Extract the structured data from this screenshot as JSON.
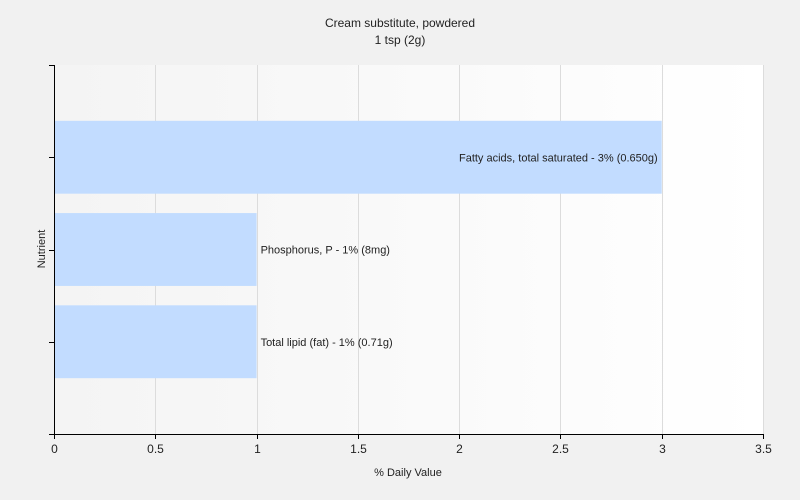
{
  "chart_data": {
    "type": "bar",
    "orientation": "horizontal",
    "title": "Cream substitute, powdered",
    "subtitle": "1 tsp (2g)",
    "xlabel": "% Daily Value",
    "ylabel": "Nutrient",
    "xlim": [
      0,
      3.5
    ],
    "xticks": [
      0,
      0.5,
      1,
      1.5,
      2,
      2.5,
      3,
      3.5
    ],
    "xtick_labels": [
      "0",
      "0.5",
      "1",
      "1.5",
      "2",
      "2.5",
      "3",
      "3.5"
    ],
    "grid": true,
    "bar_color": "#c2dcff",
    "categories": [
      "Fatty acids, total saturated",
      "Phosphorus, P",
      "Total lipid (fat)"
    ],
    "values": [
      3,
      1,
      1
    ],
    "data_labels": [
      "Fatty acids, total saturated - 3% (0.650g)",
      "Phosphorus, P - 1% (8mg)",
      "Total lipid (fat) - 1% (0.71g)"
    ]
  }
}
